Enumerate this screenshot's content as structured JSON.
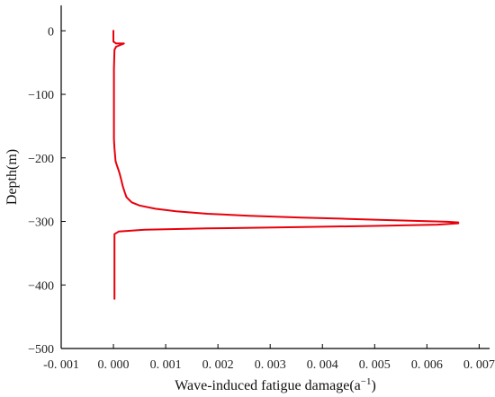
{
  "chart_data": {
    "type": "line",
    "title": "",
    "xlabel": "Wave-induced fatigue damage(a",
    "xlabel_sup": "−1",
    "xlabel_close": ")",
    "ylabel": "Depth(m)",
    "xlim": [
      -0.001,
      0.0072
    ],
    "ylim": [
      -500,
      40
    ],
    "grid": false,
    "x_ticks": [
      -0.001,
      0.0,
      0.001,
      0.002,
      0.003,
      0.004,
      0.005,
      0.006,
      0.007
    ],
    "x_tick_labels": [
      "-0. 001",
      "0. 000",
      "0. 001",
      "0. 002",
      "0. 003",
      "0. 004",
      "0. 005",
      "0. 006",
      "0. 007"
    ],
    "y_ticks": [
      0,
      -100,
      -200,
      -300,
      -400,
      -500
    ],
    "y_tick_labels": [
      "0",
      "−100",
      "−200",
      "−300",
      "−400",
      "−500"
    ],
    "series": [
      {
        "color": "#e8000b",
        "x": [
          0.0,
          0.0,
          5e-05,
          0.0002,
          5e-05,
          2e-05,
          1e-05,
          1e-05,
          1e-05,
          1e-05,
          2e-05,
          3e-05,
          4e-05,
          6e-05,
          8e-05,
          0.0001,
          0.00012,
          0.00015,
          0.00018,
          0.00022,
          0.00025,
          0.0003,
          0.00035,
          0.0005,
          0.0008,
          0.0012,
          0.0018,
          0.0026,
          0.0036,
          0.0045,
          0.0053,
          0.006,
          0.0064,
          0.0066,
          0.0066,
          0.0062,
          0.005,
          0.0035,
          0.0018,
          0.0006,
          0.0001,
          2e-05,
          2e-05,
          2e-05,
          2e-05
        ],
        "y": [
          0,
          -17,
          -20,
          -20,
          -25,
          -30,
          -60,
          -100,
          -150,
          -170,
          -185,
          -195,
          -205,
          -210,
          -215,
          -220,
          -225,
          -235,
          -245,
          -255,
          -262,
          -266,
          -270,
          -275,
          -280,
          -284,
          -288,
          -291,
          -294,
          -296,
          -298,
          -299.5,
          -300.5,
          -301.5,
          -303,
          -305,
          -307,
          -309,
          -311,
          -313,
          -316,
          -320,
          -350,
          -380,
          -422
        ]
      }
    ]
  }
}
